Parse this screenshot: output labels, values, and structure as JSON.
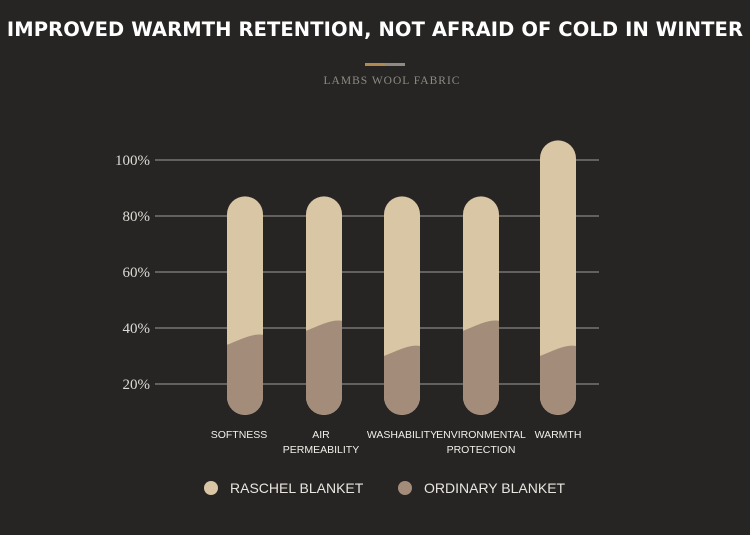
{
  "title": "IMPROVED WARMTH RETENTION, NOT AFRAID OF COLD IN WINTER",
  "subtitle": "LAMBS WOOL FABRIC",
  "colors": {
    "background": "#262524",
    "raschel": "#d8c6a4",
    "ordinary": "#a38d7a",
    "grid": "#c9c6c2",
    "accent_gold": "#b08a4e",
    "accent_gray": "#8f8a84"
  },
  "chart_data": {
    "type": "bar",
    "categories": [
      [
        "SOFTNESS"
      ],
      [
        "AIR",
        "PERMEABILITY"
      ],
      [
        "WASHABILITY"
      ],
      [
        "ENVIRONMENTAL",
        "PROTECTION"
      ],
      [
        "WARMTH"
      ]
    ],
    "series": [
      {
        "name": "RASCHEL BLANKET",
        "values": [
          87,
          87,
          87,
          87,
          107
        ]
      },
      {
        "name": "ORDINARY BLANKET",
        "values": [
          34,
          39,
          30,
          39,
          30
        ]
      }
    ],
    "y_ticks": [
      "100%",
      "80%",
      "60%",
      "40%",
      "20%"
    ],
    "y_tick_values": [
      100,
      80,
      60,
      40,
      20
    ],
    "ylim": [
      0,
      100
    ],
    "grid": true,
    "legend_position": "bottom"
  }
}
